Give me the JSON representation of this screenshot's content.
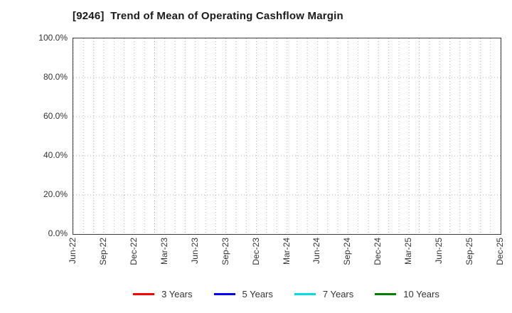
{
  "title": "[9246]  Trend of Mean of Operating Cashflow Margin",
  "colors": {
    "background": "#ffffff",
    "plot_border": "#3a3a3a",
    "gridline": "#b3b3b3",
    "tick_text": "#333333",
    "title_text": "#1a1a1a"
  },
  "chart_data": {
    "type": "line",
    "title": "[9246]  Trend of Mean of Operating Cashflow Margin",
    "xlabel": "",
    "ylabel": "",
    "ylim": [
      0,
      100
    ],
    "y_tick_values": [
      0,
      20,
      40,
      60,
      80,
      100
    ],
    "y_tick_labels": [
      "0.0%",
      "20.0%",
      "40.0%",
      "60.0%",
      "80.0%",
      "100.0%"
    ],
    "x_tick_labels": [
      "Jun-22",
      "Sep-22",
      "Dec-22",
      "Mar-23",
      "Jun-23",
      "Sep-23",
      "Dec-23",
      "Mar-24",
      "Jun-24",
      "Sep-24",
      "Dec-24",
      "Mar-25",
      "Jun-25",
      "Sep-25",
      "Dec-25"
    ],
    "minor_gridlines_per_tick": 3,
    "grid": true,
    "grid_style": "dotted",
    "legend_position": "bottom",
    "series": [
      {
        "name": "3 Years",
        "color": "#ff0000",
        "values": []
      },
      {
        "name": "5 Years",
        "color": "#0000ff",
        "values": []
      },
      {
        "name": "7 Years",
        "color": "#00dce0",
        "values": []
      },
      {
        "name": "10 Years",
        "color": "#008000",
        "values": []
      }
    ]
  }
}
